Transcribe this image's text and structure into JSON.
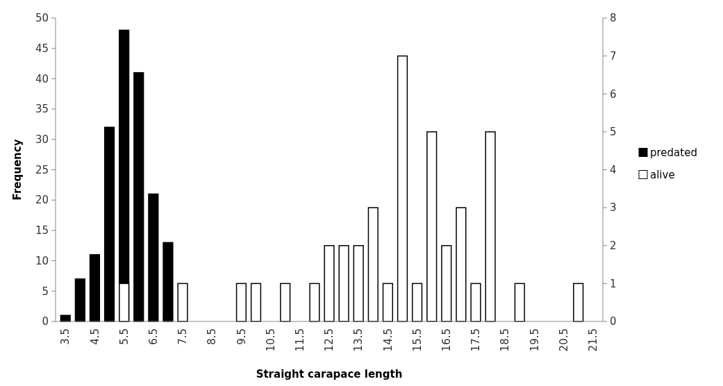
{
  "chart_data": {
    "type": "bar",
    "xlabel": "Straight carapace length",
    "ylabel": "Frequency",
    "categories": [
      "3.5",
      null,
      "4.5",
      null,
      "5.5",
      null,
      "6.5",
      null,
      "7.5",
      null,
      "8.5",
      null,
      "9.5",
      null,
      "10.5",
      null,
      "11.5",
      null,
      "12.5",
      null,
      "13.5",
      null,
      "14.5",
      null,
      "15.5",
      null,
      "16.5",
      null,
      "17.5",
      null,
      "18.5",
      null,
      "19.5",
      null,
      "20.5",
      null,
      "21.5"
    ],
    "series": [
      {
        "name": "predated",
        "color": "#000000",
        "values": [
          1,
          7,
          11,
          32,
          48,
          41,
          21,
          13,
          null,
          null,
          null,
          null,
          null,
          null,
          null,
          null,
          null,
          null,
          null,
          null,
          null,
          null,
          null,
          null,
          null,
          null,
          null,
          null,
          null,
          null,
          null,
          null,
          null,
          null,
          null,
          null,
          null
        ]
      },
      {
        "name": "alive",
        "color": "#ffffff",
        "axis": "y2",
        "values": [
          null,
          null,
          null,
          null,
          1,
          null,
          null,
          null,
          1,
          null,
          null,
          null,
          1,
          1,
          null,
          1,
          null,
          1,
          2,
          2,
          2,
          3,
          1,
          7,
          1,
          5,
          2,
          3,
          1,
          5,
          null,
          1,
          null,
          null,
          null,
          1,
          null
        ]
      }
    ],
    "ylim": [
      0,
      50
    ],
    "yticks": [
      0,
      5,
      10,
      15,
      20,
      25,
      30,
      35,
      40,
      45,
      50
    ],
    "y2lim": [
      0,
      8
    ],
    "y2ticks": [
      0,
      1,
      2,
      3,
      4,
      5,
      6,
      7,
      8
    ],
    "legend": "right",
    "grid": false
  }
}
